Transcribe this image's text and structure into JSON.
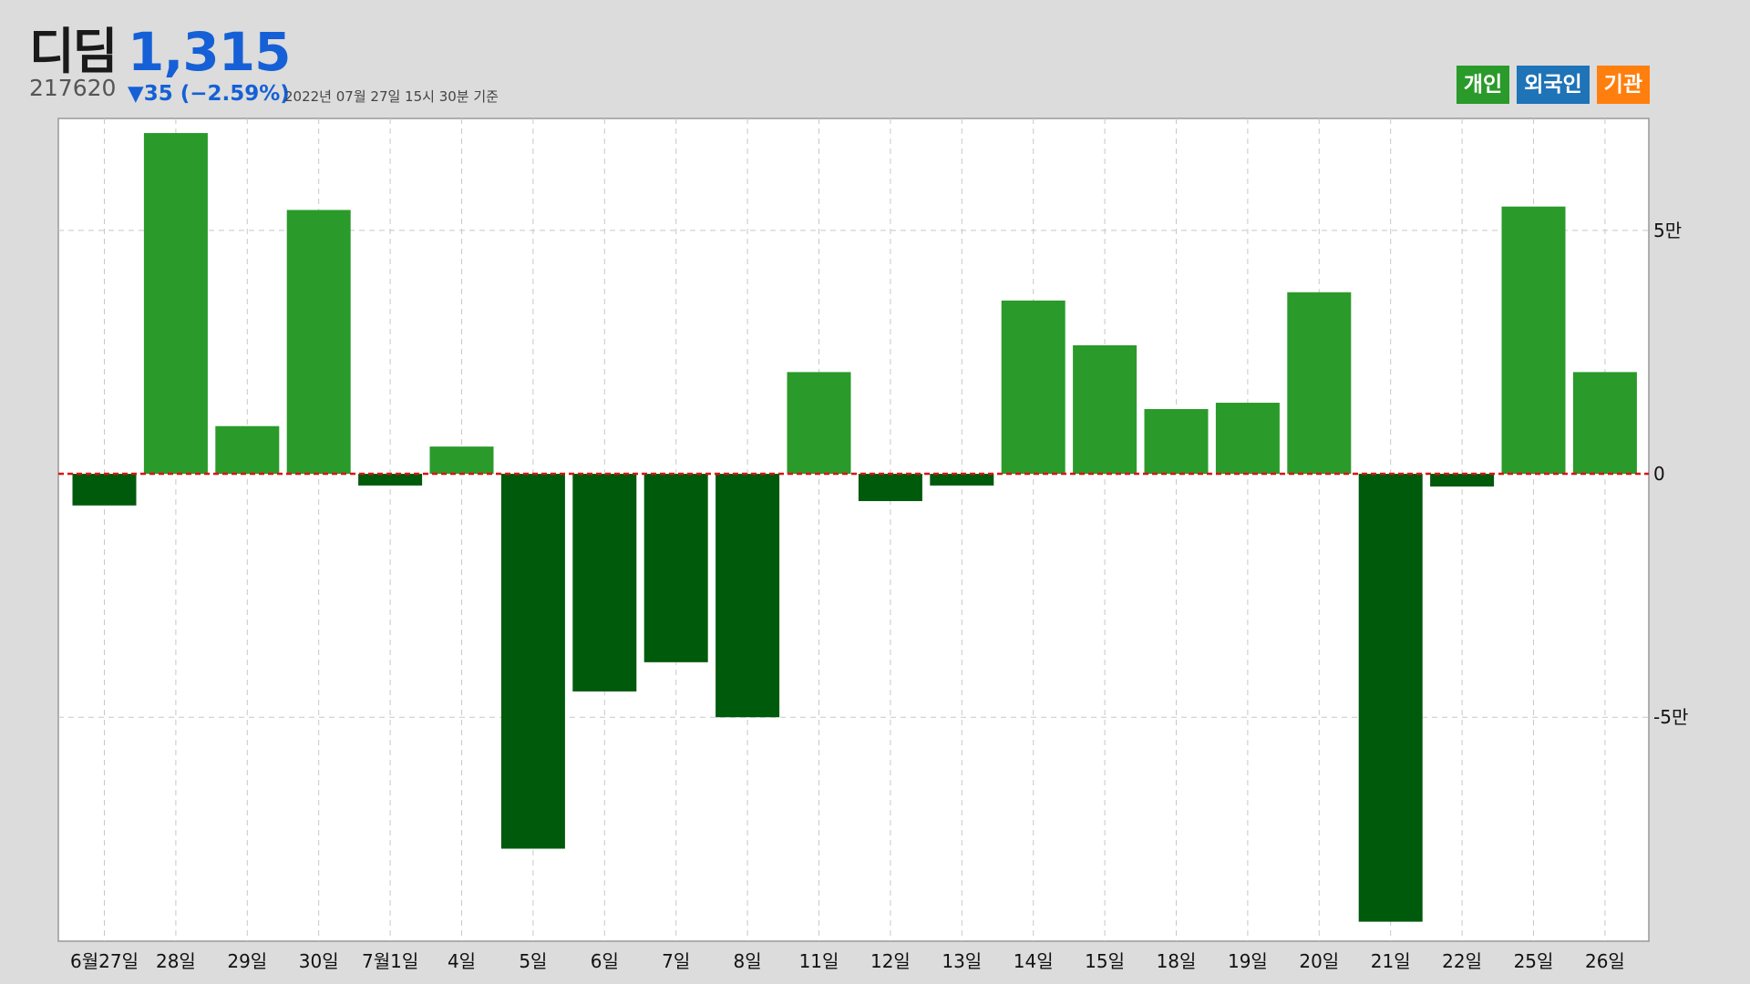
{
  "header": {
    "name": "디딤",
    "price": "1,315",
    "code": "217620",
    "change": "▼35 (−2.59%)",
    "timestamp": "2022년 07월 27일 15시 30분 기준"
  },
  "legend": [
    {
      "label": "개인",
      "color": "#2a9a2a"
    },
    {
      "label": "외국인",
      "color": "#1f73b7"
    },
    {
      "label": "기관",
      "color": "#ff7f0e"
    }
  ],
  "chart_data": {
    "type": "bar",
    "categories": [
      "6월27일",
      "28일",
      "29일",
      "30일",
      "7월1일",
      "4일",
      "5일",
      "6일",
      "7일",
      "8일",
      "11일",
      "12일",
      "13일",
      "14일",
      "15일",
      "18일",
      "19일",
      "20일",
      "21일",
      "22일",
      "25일",
      "26일"
    ],
    "series": [
      {
        "name": "개인",
        "values": [
          -6500,
          70000,
          9800,
          54200,
          -2400,
          5600,
          -77000,
          -44700,
          -38700,
          -50000,
          20900,
          -5600,
          -2400,
          35600,
          26400,
          13300,
          14600,
          37300,
          -92000,
          -2600,
          54900,
          20900
        ]
      }
    ],
    "positive_color": "#2a9a2a",
    "negative_color": "#005a0c",
    "ylim": [
      -96000,
      73000
    ],
    "yticks": [
      {
        "value": 50000,
        "label": "5만"
      },
      {
        "value": 0,
        "label": "0"
      },
      {
        "value": -50000,
        "label": "-5만"
      }
    ],
    "grid": true,
    "zero_line_color": "#e01010",
    "legend_position": "top-right"
  }
}
